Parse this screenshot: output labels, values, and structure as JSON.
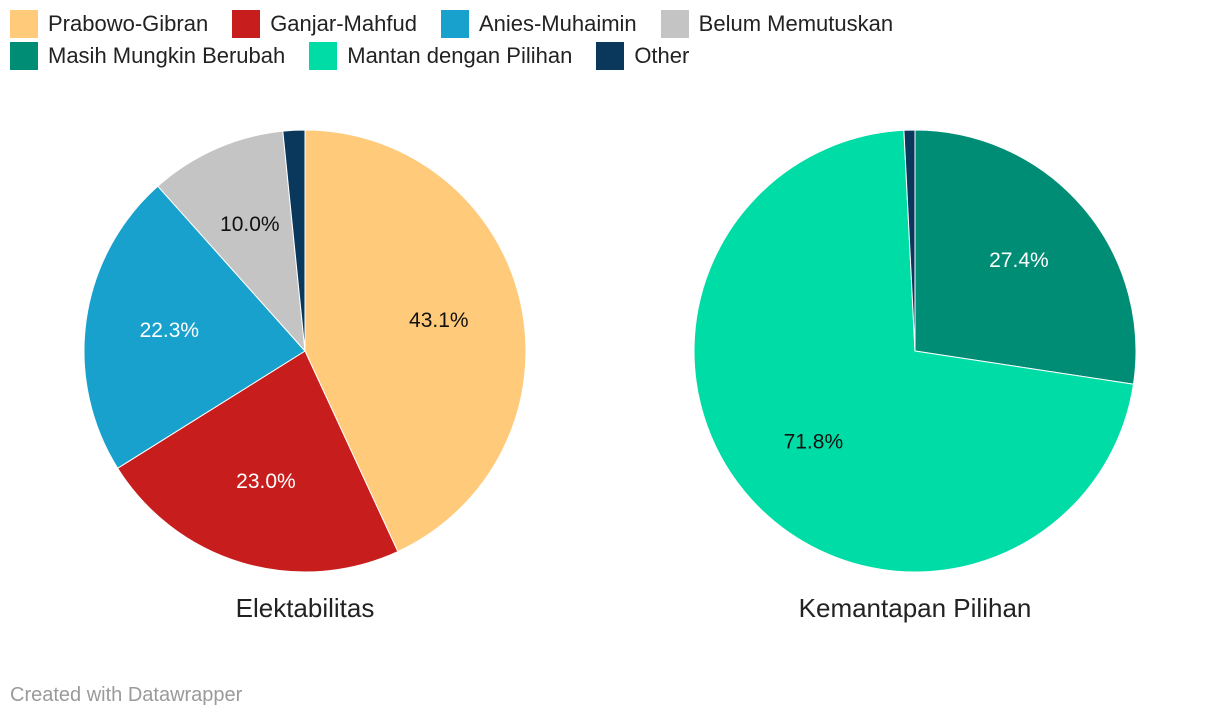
{
  "legend": {
    "rows": [
      [
        {
          "label": "Prabowo-Gibran",
          "color": "#ffca7a"
        },
        {
          "label": "Ganjar-Mahfud",
          "color": "#c71e1d"
        },
        {
          "label": "Anies-Muhaimin",
          "color": "#18a1cd"
        },
        {
          "label": "Belum Memutuskan",
          "color": "#c4c4c4"
        }
      ],
      [
        {
          "label": "Masih Mungkin Berubah",
          "color": "#008d75"
        },
        {
          "label": "Mantan dengan Pilihan",
          "color": "#00dca6"
        },
        {
          "label": "Other",
          "color": "#09385c"
        }
      ]
    ]
  },
  "chart_data": [
    {
      "type": "pie",
      "title": "Elektabilitas",
      "slices": [
        {
          "label": "Prabowo-Gibran",
          "value": 43.1,
          "value_label": "43.1%",
          "color": "#ffca7a",
          "text_color": "#111111"
        },
        {
          "label": "Ganjar-Mahfud",
          "value": 23.0,
          "value_label": "23.0%",
          "color": "#c71e1d",
          "text_color": "#ffffff"
        },
        {
          "label": "Anies-Muhaimin",
          "value": 22.3,
          "value_label": "22.3%",
          "color": "#18a1cd",
          "text_color": "#ffffff"
        },
        {
          "label": "Belum Memutuskan",
          "value": 10.0,
          "value_label": "10.0%",
          "color": "#c4c4c4",
          "text_color": "#111111"
        },
        {
          "label": "Other",
          "value": 1.6,
          "value_label": "",
          "color": "#09385c",
          "text_color": "#ffffff"
        }
      ]
    },
    {
      "type": "pie",
      "title": "Kemantapan Pilihan",
      "slices": [
        {
          "label": "Masih Mungkin Berubah",
          "value": 27.4,
          "value_label": "27.4%",
          "color": "#008d75",
          "text_color": "#ffffff"
        },
        {
          "label": "Mantan dengan Pilihan",
          "value": 71.8,
          "value_label": "71.8%",
          "color": "#00dca6",
          "text_color": "#111111"
        },
        {
          "label": "Other",
          "value": 0.8,
          "value_label": "",
          "color": "#09385c",
          "text_color": "#ffffff"
        }
      ]
    }
  ],
  "footer": {
    "credit": "Created with Datawrapper"
  }
}
